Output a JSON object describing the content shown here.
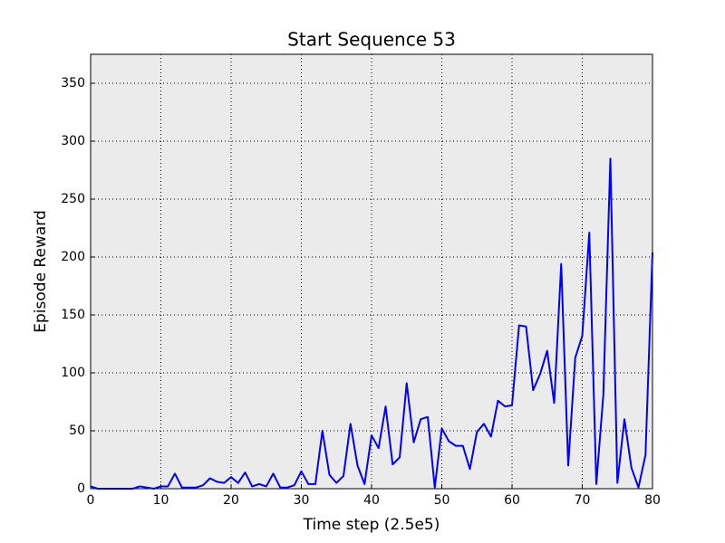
{
  "chart_data": {
    "type": "line",
    "title": "Start Sequence 53",
    "xlabel": "Time step (2.5e5)",
    "ylabel": "Episode Reward",
    "x": [
      0,
      1,
      2,
      3,
      4,
      5,
      6,
      7,
      8,
      9,
      10,
      11,
      12,
      13,
      14,
      15,
      16,
      17,
      18,
      19,
      20,
      21,
      22,
      23,
      24,
      25,
      26,
      27,
      28,
      29,
      30,
      31,
      32,
      33,
      34,
      35,
      36,
      37,
      38,
      39,
      40,
      41,
      42,
      43,
      44,
      45,
      46,
      47,
      48,
      49,
      50,
      51,
      52,
      53,
      54,
      55,
      56,
      57,
      58,
      59,
      60,
      61,
      62,
      63,
      64,
      65,
      66,
      67,
      68,
      69,
      70,
      71,
      72,
      73,
      74,
      75,
      76,
      77,
      78,
      79,
      80
    ],
    "series": [
      {
        "color": "#0000ff",
        "values": [
          2,
          0,
          0,
          0,
          0,
          0,
          0,
          2,
          1,
          0,
          2,
          2,
          13,
          1,
          1,
          1,
          3,
          9,
          6,
          5,
          10,
          5,
          14,
          2,
          4,
          2,
          13,
          1,
          1,
          3,
          15,
          4,
          4,
          50,
          12,
          5,
          11,
          56,
          20,
          4,
          46,
          35,
          71,
          21,
          27,
          91,
          40,
          60,
          62,
          1,
          52,
          41,
          37,
          37,
          17,
          49,
          56,
          45,
          76,
          71,
          72,
          141,
          140,
          85,
          99,
          119,
          74,
          194,
          20,
          113,
          132,
          221,
          4,
          81,
          285,
          5,
          60,
          18,
          1,
          29,
          204
        ]
      }
    ],
    "xlim": [
      0,
      80
    ],
    "xticks": [
      0,
      10,
      20,
      30,
      40,
      50,
      60,
      70,
      80
    ],
    "ylim": [
      0,
      375
    ],
    "yticks": [
      0,
      50,
      100,
      150,
      200,
      250,
      300,
      350
    ],
    "grid": true
  }
}
